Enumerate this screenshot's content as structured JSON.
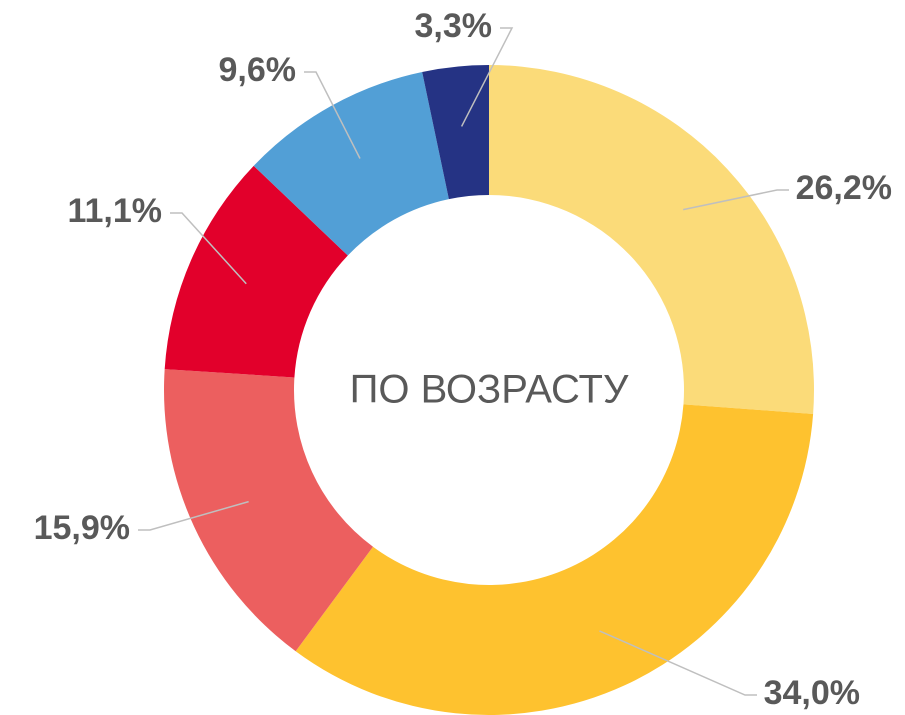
{
  "chart_data": {
    "type": "donut",
    "center_text": "ПО ВОЗРАСТУ",
    "values": [
      26.2,
      34.0,
      15.9,
      11.1,
      9.6,
      3.3
    ],
    "value_labels": [
      "26,2%",
      "34,0%",
      "15,9%",
      "11,1%",
      "9,6%",
      "3,3%"
    ],
    "colors": [
      "#FBDB79",
      "#FEC22F",
      "#EC5F5F",
      "#E2002B",
      "#529FD6",
      "#253384"
    ]
  }
}
